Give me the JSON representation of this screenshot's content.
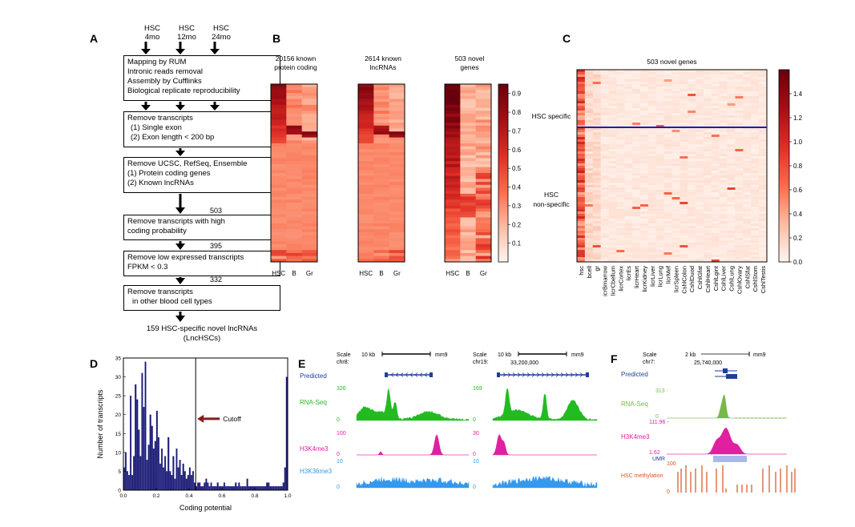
{
  "panel_a": {
    "label": "A",
    "inputs": [
      "HSC\n4mo",
      "HSC\n12mo",
      "HSC\n24mo"
    ],
    "input_lines": [
      [
        "HSC",
        "4mo"
      ],
      [
        "HSC",
        "12mo"
      ],
      [
        "HSC",
        "24mo"
      ]
    ],
    "step1": [
      "Mapping by RUM",
      "Intronic reads removal",
      "Assembly by Cufflinks",
      "Biological replicate reproducibility"
    ],
    "step2": [
      "Remove transcripts",
      "(1) Single exon",
      "(2) Exon length < 200 bp"
    ],
    "step3": [
      "Remove UCSC, RefSeq, Ensemble",
      "(1) Protein coding genes",
      "(2) Known lncRNAs"
    ],
    "count1": "503",
    "step4": [
      "Remove transcripts with high",
      "coding probability"
    ],
    "count2": "395",
    "step5": [
      "Remove low expressed transcripts",
      "FPKM < 0.3"
    ],
    "count3": "332",
    "step6": [
      "Remove transcripts",
      "in other blood cell types"
    ],
    "final": [
      "159 HSC-specific novel lncRNAs",
      "(LncHSCs)"
    ]
  },
  "panel_b": {
    "label": "B",
    "heatmaps": [
      {
        "title": [
          "20156 known",
          "protein coding"
        ],
        "cols": [
          "HSC",
          "B",
          "Gr"
        ]
      },
      {
        "title": [
          "2614 known",
          "lncRNAs"
        ],
        "cols": [
          "HSC",
          "B",
          "Gr"
        ]
      },
      {
        "title": [
          "503 novel",
          "genes"
        ],
        "cols": [
          "HSC",
          "B",
          "Gr"
        ]
      }
    ],
    "colorbar_ticks": [
      "0.9",
      "0.8",
      "0.7",
      "0.6",
      "0.5",
      "0.4",
      "0.3",
      "0.2",
      "0.1"
    ]
  },
  "panel_c": {
    "label": "C",
    "title": "503 novel genes",
    "row_labels": [
      "HSC specific",
      "HSC\nnon-specific"
    ],
    "row_label_specific": "HSC specific",
    "row_label_nonspecific": [
      "HSC",
      "non-specific"
    ],
    "columns": [
      "hsc",
      "bcell",
      "gr",
      "icrBmarrow",
      "licrCbellum",
      "licrCortex",
      "licrEs",
      "licrHeart",
      "licrKidney",
      "licrLiver",
      "licrLung",
      "licrMef",
      "licrSpleen",
      "CshlColon",
      "CshlDuod",
      "CshlGfat",
      "CshlHeart",
      "CshlLgint",
      "CshlLiver",
      "CshlLung",
      "CshlOvary",
      "CshlSfat",
      "CshlStom",
      "CshlTestis"
    ],
    "colorbar_ticks": [
      "1.4",
      "1.2",
      "1.0",
      "0.8",
      "0.6",
      "0.4",
      "0.2",
      "0.0"
    ],
    "divider_color": "#1a1acc"
  },
  "panel_d": {
    "label": "D",
    "chart_data": {
      "type": "bar",
      "xlabel": "Coding potential",
      "ylabel": "Number of transcripts",
      "xlim": [
        0.0,
        1.0
      ],
      "ylim": [
        0,
        35
      ],
      "xticks": [
        "0.0",
        "0.2",
        "0.4",
        "0.6",
        "0.8",
        "1.0"
      ],
      "yticks": [
        "0",
        "5",
        "10",
        "15",
        "20",
        "25",
        "30",
        "35"
      ],
      "bin_width": 0.01,
      "values": [
        6,
        10,
        5,
        4,
        25,
        4,
        9,
        28,
        24,
        16,
        9,
        31,
        22,
        34,
        8,
        12,
        20,
        17,
        11,
        13,
        21,
        14,
        7,
        11,
        6,
        9,
        5,
        14,
        5,
        4,
        9,
        3,
        11,
        6,
        8,
        4,
        7,
        5,
        3,
        4,
        6,
        4,
        5,
        2,
        1,
        2,
        2,
        1,
        1,
        2,
        3,
        2,
        1,
        2,
        1,
        1,
        1,
        2,
        1,
        1,
        1,
        2,
        1,
        1,
        1,
        1,
        1,
        1,
        2,
        1,
        2,
        1,
        1,
        1,
        1,
        3,
        1,
        1,
        1,
        1,
        1,
        1,
        1,
        1,
        1,
        1,
        1,
        2,
        2,
        1,
        1,
        1,
        1,
        1,
        1,
        1,
        1,
        2,
        6,
        30
      ],
      "cutoff": 0.44,
      "annotation": "Cutoff",
      "bar_color": "#1a1a6e",
      "arrow_color": "#8b1a1a"
    }
  },
  "panel_e": {
    "label": "E",
    "tracks": [
      "Predicted",
      "RNA-Seq",
      "H3K4me3",
      "H3K36me3"
    ],
    "left": {
      "chr": "chr8:",
      "scale": "10 kb",
      "genome": "mm9",
      "rna_max": "326",
      "k4_max": "100",
      "k36_max": "10"
    },
    "right": {
      "chr": "chr19:",
      "scale": "10 kb",
      "genome": "mm9",
      "coord": "33,200,000",
      "rna_max": "169",
      "k4_max": "30",
      "k36_max": "10"
    },
    "scale_word": "Scale",
    "zero": "0",
    "colors": {
      "predicted": "#1f3f99",
      "rna": "#22bb22",
      "k4": "#e020a0",
      "k36": "#3399ee"
    }
  },
  "panel_f": {
    "label": "F",
    "scale_word": "Scale",
    "chr": "chr7:",
    "scale": "2 kb",
    "genome": "mm9",
    "coord": "25,740,000",
    "tracks": [
      "Predicted",
      "RNA-Seq",
      "H3K4me3",
      "UMR",
      "HSC methylation"
    ],
    "rna_max": "313 -",
    "rna_zero": "0",
    "k4_max": "111.96 -",
    "k4_min": "1.62",
    "meth_max": "100",
    "meth_zero": "0",
    "colors": {
      "predicted": "#1f3f99",
      "rna": "#77b84a",
      "k4": "#e020a0",
      "umr": "#aab8e8",
      "meth": "#d4541e"
    }
  }
}
